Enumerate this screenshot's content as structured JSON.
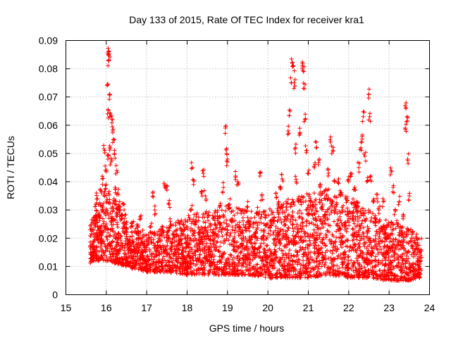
{
  "chart_data": {
    "type": "scatter",
    "title": "Day 133 of 2015, Rate Of TEC Index for receiver kra1",
    "xlabel": "GPS time / hours",
    "ylabel": "ROTI / TECUs",
    "xlim": [
      15,
      24
    ],
    "ylim": [
      0,
      0.09
    ],
    "xticks": [
      "15",
      "16",
      "17",
      "18",
      "19",
      "20",
      "21",
      "22",
      "23",
      "24"
    ],
    "yticks": [
      "0",
      "0.01",
      "0.02",
      "0.03",
      "0.04",
      "0.05",
      "0.06",
      "0.07",
      "0.08",
      "0.09"
    ],
    "grid": true,
    "marker": "+",
    "marker_color": "#ff0000",
    "series": [
      {
        "name": "ROTI",
        "points": [
          [
            15.62,
            0.013
          ],
          [
            15.66,
            0.018
          ],
          [
            15.7,
            0.015
          ],
          [
            15.72,
            0.026
          ],
          [
            15.74,
            0.032
          ],
          [
            15.76,
            0.022
          ],
          [
            15.78,
            0.034
          ],
          [
            15.8,
            0.019
          ],
          [
            15.82,
            0.028
          ],
          [
            15.84,
            0.024
          ],
          [
            15.86,
            0.037
          ],
          [
            15.88,
            0.021
          ],
          [
            15.9,
            0.041
          ],
          [
            15.92,
            0.03
          ],
          [
            15.94,
            0.036
          ],
          [
            15.96,
            0.051
          ],
          [
            15.98,
            0.044
          ],
          [
            16.0,
            0.039
          ],
          [
            16.02,
            0.074
          ],
          [
            16.03,
            0.064
          ],
          [
            16.04,
            0.048
          ],
          [
            16.05,
            0.085
          ],
          [
            16.06,
            0.083
          ],
          [
            16.07,
            0.086
          ],
          [
            16.08,
            0.071
          ],
          [
            16.09,
            0.052
          ],
          [
            16.1,
            0.064
          ],
          [
            16.12,
            0.047
          ],
          [
            16.14,
            0.062
          ],
          [
            16.16,
            0.058
          ],
          [
            16.18,
            0.055
          ],
          [
            16.2,
            0.05
          ],
          [
            16.22,
            0.038
          ],
          [
            16.24,
            0.032
          ],
          [
            16.26,
            0.044
          ],
          [
            16.28,
            0.036
          ],
          [
            16.3,
            0.03
          ],
          [
            16.34,
            0.031
          ],
          [
            16.38,
            0.027
          ],
          [
            16.42,
            0.032
          ],
          [
            16.46,
            0.024
          ],
          [
            16.5,
            0.022
          ],
          [
            16.55,
            0.018
          ],
          [
            16.6,
            0.016
          ],
          [
            16.65,
            0.011
          ],
          [
            16.7,
            0.015
          ],
          [
            16.75,
            0.018
          ],
          [
            16.8,
            0.021
          ],
          [
            16.85,
            0.027
          ],
          [
            16.9,
            0.014
          ],
          [
            16.95,
            0.017
          ],
          [
            17.0,
            0.01
          ],
          [
            17.05,
            0.019
          ],
          [
            17.1,
            0.024
          ],
          [
            17.15,
            0.036
          ],
          [
            17.2,
            0.03
          ],
          [
            17.25,
            0.014
          ],
          [
            17.3,
            0.012
          ],
          [
            17.35,
            0.019
          ],
          [
            17.4,
            0.024
          ],
          [
            17.45,
            0.038
          ],
          [
            17.5,
            0.037
          ],
          [
            17.55,
            0.032
          ],
          [
            17.6,
            0.025
          ],
          [
            17.65,
            0.02
          ],
          [
            17.7,
            0.016
          ],
          [
            17.75,
            0.013
          ],
          [
            17.8,
            0.018
          ],
          [
            17.85,
            0.021
          ],
          [
            17.9,
            0.012
          ],
          [
            17.95,
            0.01
          ],
          [
            18.0,
            0.009
          ],
          [
            18.05,
            0.014
          ],
          [
            18.1,
            0.03
          ],
          [
            18.13,
            0.045
          ],
          [
            18.16,
            0.039
          ],
          [
            18.2,
            0.025
          ],
          [
            18.25,
            0.018
          ],
          [
            18.3,
            0.022
          ],
          [
            18.35,
            0.036
          ],
          [
            18.4,
            0.043
          ],
          [
            18.45,
            0.035
          ],
          [
            18.5,
            0.021
          ],
          [
            18.55,
            0.016
          ],
          [
            18.6,
            0.011
          ],
          [
            18.65,
            0.019
          ],
          [
            18.7,
            0.025
          ],
          [
            18.75,
            0.028
          ],
          [
            18.8,
            0.031
          ],
          [
            18.85,
            0.023
          ],
          [
            18.9,
            0.038
          ],
          [
            18.95,
            0.059
          ],
          [
            18.98,
            0.05
          ],
          [
            19.0,
            0.047
          ],
          [
            19.05,
            0.032
          ],
          [
            19.1,
            0.026
          ],
          [
            19.15,
            0.019
          ],
          [
            19.2,
            0.042
          ],
          [
            19.25,
            0.04
          ],
          [
            19.3,
            0.024
          ],
          [
            19.35,
            0.018
          ],
          [
            19.4,
            0.014
          ],
          [
            19.45,
            0.012
          ],
          [
            19.5,
            0.031
          ],
          [
            19.55,
            0.025
          ],
          [
            19.6,
            0.018
          ],
          [
            19.65,
            0.016
          ],
          [
            19.7,
            0.022
          ],
          [
            19.75,
            0.029
          ],
          [
            19.8,
            0.042
          ],
          [
            19.85,
            0.035
          ],
          [
            19.9,
            0.021
          ],
          [
            19.95,
            0.012
          ],
          [
            20.0,
            0.009
          ],
          [
            20.05,
            0.006
          ],
          [
            20.1,
            0.012
          ],
          [
            20.15,
            0.026
          ],
          [
            20.2,
            0.036
          ],
          [
            20.25,
            0.032
          ],
          [
            20.3,
            0.038
          ],
          [
            20.35,
            0.041
          ],
          [
            20.4,
            0.026
          ],
          [
            20.45,
            0.031
          ],
          [
            20.5,
            0.058
          ],
          [
            20.55,
            0.065
          ],
          [
            20.58,
            0.075
          ],
          [
            20.6,
            0.082
          ],
          [
            20.63,
            0.081
          ],
          [
            20.65,
            0.075
          ],
          [
            20.68,
            0.052
          ],
          [
            20.7,
            0.04
          ],
          [
            20.75,
            0.034
          ],
          [
            20.8,
            0.057
          ],
          [
            20.85,
            0.081
          ],
          [
            20.88,
            0.079
          ],
          [
            20.9,
            0.073
          ],
          [
            20.92,
            0.062
          ],
          [
            20.95,
            0.051
          ],
          [
            21.0,
            0.043
          ],
          [
            21.05,
            0.034
          ],
          [
            21.1,
            0.03
          ],
          [
            21.15,
            0.045
          ],
          [
            21.2,
            0.054
          ],
          [
            21.25,
            0.046
          ],
          [
            21.3,
            0.039
          ],
          [
            21.35,
            0.032
          ],
          [
            21.4,
            0.028
          ],
          [
            21.45,
            0.035
          ],
          [
            21.5,
            0.043
          ],
          [
            21.55,
            0.054
          ],
          [
            21.6,
            0.051
          ],
          [
            21.65,
            0.04
          ],
          [
            21.7,
            0.032
          ],
          [
            21.75,
            0.041
          ],
          [
            21.8,
            0.036
          ],
          [
            21.85,
            0.03
          ],
          [
            21.9,
            0.024
          ],
          [
            21.95,
            0.034
          ],
          [
            22.0,
            0.04
          ],
          [
            22.05,
            0.043
          ],
          [
            22.1,
            0.027
          ],
          [
            22.15,
            0.038
          ],
          [
            22.2,
            0.031
          ],
          [
            22.25,
            0.045
          ],
          [
            22.3,
            0.052
          ],
          [
            22.33,
            0.056
          ],
          [
            22.36,
            0.063
          ],
          [
            22.4,
            0.049
          ],
          [
            22.45,
            0.04
          ],
          [
            22.5,
            0.071
          ],
          [
            22.52,
            0.063
          ],
          [
            22.55,
            0.042
          ],
          [
            22.6,
            0.033
          ],
          [
            22.65,
            0.027
          ],
          [
            22.7,
            0.034
          ],
          [
            22.75,
            0.03
          ],
          [
            22.8,
            0.024
          ],
          [
            22.85,
            0.033
          ],
          [
            22.9,
            0.02
          ],
          [
            22.95,
            0.015
          ],
          [
            23.0,
            0.011
          ],
          [
            23.05,
            0.044
          ],
          [
            23.1,
            0.038
          ],
          [
            23.15,
            0.03
          ],
          [
            23.2,
            0.025
          ],
          [
            23.25,
            0.033
          ],
          [
            23.3,
            0.022
          ],
          [
            23.35,
            0.028
          ],
          [
            23.4,
            0.059
          ],
          [
            23.42,
            0.066
          ],
          [
            23.44,
            0.063
          ],
          [
            23.46,
            0.048
          ],
          [
            23.5,
            0.035
          ],
          [
            23.55,
            0.02
          ],
          [
            23.6,
            0.015
          ],
          [
            23.65,
            0.018
          ],
          [
            23.7,
            0.012
          ],
          [
            23.75,
            0.009
          ]
        ],
        "band_profile": [
          [
            15.6,
            0.012,
            0.026
          ],
          [
            16.0,
            0.012,
            0.038
          ],
          [
            16.5,
            0.01,
            0.028
          ],
          [
            17.0,
            0.008,
            0.022
          ],
          [
            17.5,
            0.008,
            0.024
          ],
          [
            18.0,
            0.007,
            0.028
          ],
          [
            18.5,
            0.007,
            0.03
          ],
          [
            19.0,
            0.007,
            0.032
          ],
          [
            19.5,
            0.007,
            0.03
          ],
          [
            20.0,
            0.006,
            0.03
          ],
          [
            20.5,
            0.006,
            0.034
          ],
          [
            21.0,
            0.006,
            0.036
          ],
          [
            21.5,
            0.007,
            0.038
          ],
          [
            22.0,
            0.006,
            0.036
          ],
          [
            22.5,
            0.006,
            0.03
          ],
          [
            23.0,
            0.005,
            0.026
          ],
          [
            23.5,
            0.005,
            0.024
          ],
          [
            23.8,
            0.006,
            0.02
          ]
        ],
        "band_count": 3400
      }
    ]
  }
}
